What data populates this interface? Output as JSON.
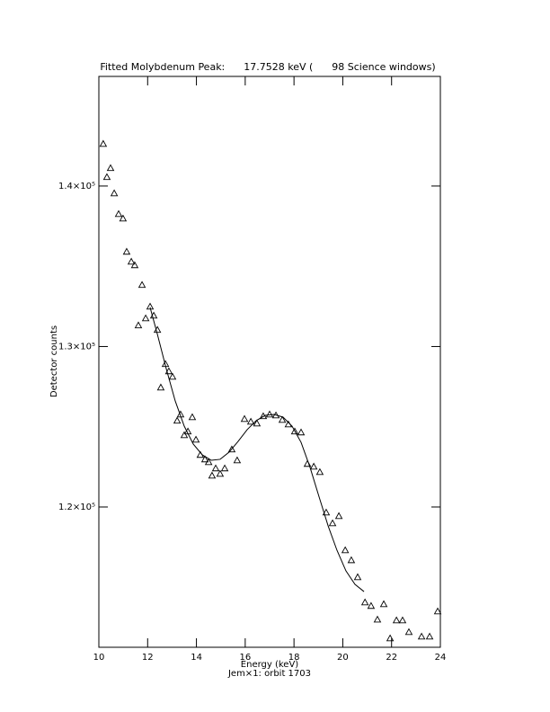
{
  "chart_data": {
    "type": "scatter",
    "title": "Fitted Molybdenum Peak:      17.7528 keV (      98 Science windows)",
    "xlabel": "Energy (keV)",
    "subtitle": "Jem×1: orbit 1703",
    "ylabel": "Detector counts",
    "xlim": [
      10,
      24
    ],
    "ylim": [
      111260,
      146830
    ],
    "xticks": [
      10,
      12,
      14,
      16,
      18,
      20,
      22,
      24
    ],
    "yticks": [
      {
        "value": 120000,
        "label": "1.2×10⁵"
      },
      {
        "value": 130000,
        "label": "1.3×10⁵"
      },
      {
        "value": 140000,
        "label": "1.4×10⁵"
      }
    ],
    "series": [
      {
        "mode": "markers",
        "marker": "triangle",
        "color": "#000000",
        "x": [
          10.18,
          10.33,
          10.48,
          10.63,
          10.81,
          10.99,
          11.14,
          11.33,
          11.47,
          11.62,
          11.77,
          11.92,
          12.1,
          12.25,
          12.4,
          12.54,
          12.73,
          12.87,
          13.02,
          13.21,
          13.35,
          13.5,
          13.65,
          13.83,
          13.98,
          14.16,
          14.35,
          14.5,
          14.64,
          14.79,
          14.97,
          15.16,
          15.45,
          15.67,
          15.97,
          16.23,
          16.48,
          16.74,
          17.0,
          17.26,
          17.52,
          17.77,
          18.03,
          18.29,
          18.55,
          18.81,
          19.06,
          19.32,
          19.58,
          19.84,
          20.1,
          20.35,
          20.61,
          20.91,
          21.16,
          21.42,
          21.68,
          21.94,
          22.2,
          22.45,
          22.71,
          23.23,
          23.56,
          23.89
        ],
        "values": [
          142630,
          140560,
          141120,
          139550,
          138260,
          137980,
          135910,
          135290,
          135070,
          131320,
          133840,
          131760,
          132490,
          131930,
          131040,
          127450,
          128910,
          128460,
          128120,
          125380,
          125770,
          124480,
          124710,
          125600,
          124200,
          123250,
          122970,
          122800,
          121960,
          122410,
          122070,
          122410,
          123590,
          122910,
          125490,
          125320,
          125210,
          125660,
          125770,
          125710,
          125430,
          125150,
          124710,
          124650,
          122690,
          122520,
          122180,
          119660,
          118990,
          119440,
          117310,
          116690,
          115630,
          114060,
          113840,
          112990,
          113950,
          111820,
          112940,
          112940,
          112210,
          111930,
          111930,
          113500
        ]
      },
      {
        "mode": "line",
        "color": "#000000",
        "x": [
          12.1,
          12.4,
          12.76,
          13.13,
          13.5,
          13.87,
          14.24,
          14.61,
          14.97,
          15.34,
          15.71,
          16.08,
          16.45,
          16.82,
          17.18,
          17.55,
          17.92,
          18.29,
          18.66,
          19.03,
          19.4,
          19.76,
          20.13,
          20.5,
          20.87
        ],
        "values": [
          132440,
          130760,
          128630,
          126610,
          125040,
          123920,
          123250,
          122910,
          122970,
          123420,
          124090,
          124820,
          125380,
          125710,
          125770,
          125600,
          125040,
          124030,
          122460,
          120620,
          118820,
          117310,
          116020,
          115180,
          114730
        ]
      }
    ]
  }
}
